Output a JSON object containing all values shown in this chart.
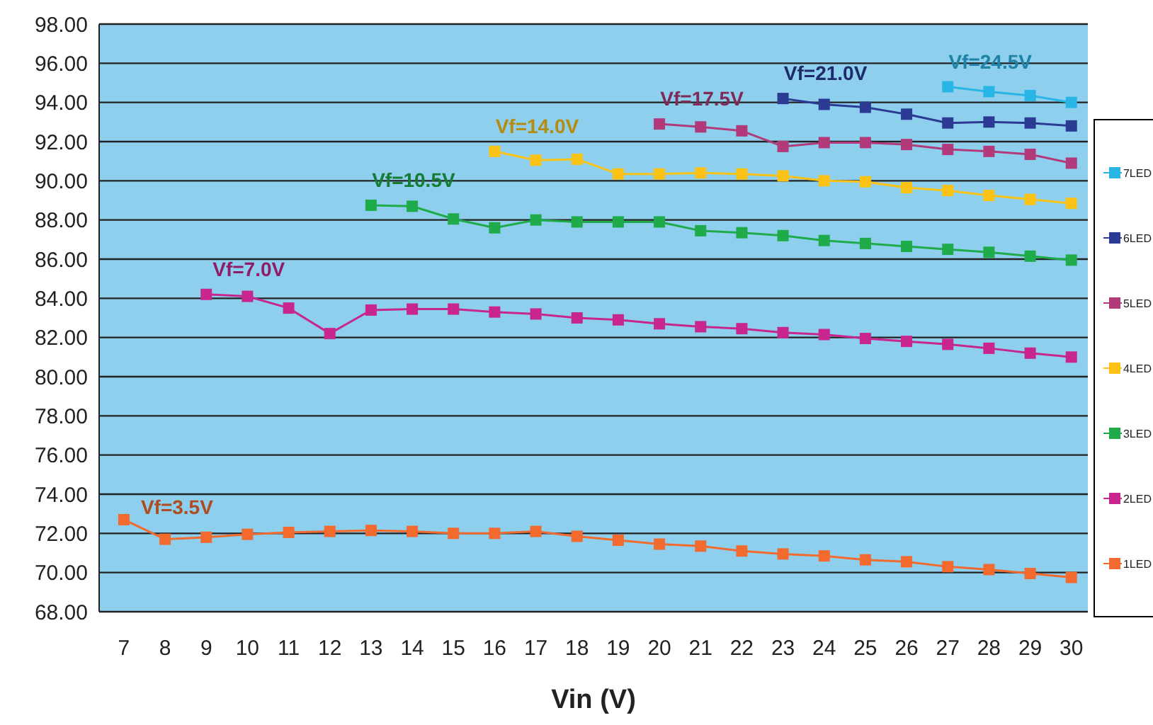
{
  "chart_data": {
    "type": "line",
    "xlabel": "Vin (V)",
    "xlim": [
      6.4,
      30.4
    ],
    "xticks": [
      7,
      8,
      9,
      10,
      11,
      12,
      13,
      14,
      15,
      16,
      17,
      18,
      19,
      20,
      21,
      22,
      23,
      24,
      25,
      26,
      27,
      28,
      29,
      30
    ],
    "ylim": [
      68,
      98
    ],
    "yticks": [
      {
        "value": 68,
        "label": "68.00"
      },
      {
        "value": 70,
        "label": "70.00"
      },
      {
        "value": 72,
        "label": "72.00"
      },
      {
        "value": 74,
        "label": "74.00"
      },
      {
        "value": 76,
        "label": "76.00"
      },
      {
        "value": 78,
        "label": "78.00"
      },
      {
        "value": 80,
        "label": "80.00"
      },
      {
        "value": 82,
        "label": "82.00"
      },
      {
        "value": 84,
        "label": "84.00"
      },
      {
        "value": 86,
        "label": "86.00"
      },
      {
        "value": 88,
        "label": "88.00"
      },
      {
        "value": 90,
        "label": "90.00"
      },
      {
        "value": 92,
        "label": "92.00"
      },
      {
        "value": 94,
        "label": "94.00"
      },
      {
        "value": 96,
        "label": "96.00"
      },
      {
        "value": 98,
        "label": "98.00"
      }
    ],
    "grid": "y",
    "legend": "right",
    "marker": "square",
    "line_style": "solid",
    "series": [
      {
        "name": "1LED",
        "color": "#f26a2e",
        "x": [
          7,
          8,
          9,
          10,
          11,
          12,
          13,
          14,
          15,
          16,
          17,
          18,
          19,
          20,
          21,
          22,
          23,
          24,
          25,
          26,
          27,
          28,
          29,
          30
        ],
        "values": [
          72.7,
          71.7,
          71.8,
          71.95,
          72.05,
          72.1,
          72.15,
          72.1,
          72.0,
          72.0,
          72.1,
          71.85,
          71.65,
          71.45,
          71.35,
          71.1,
          70.95,
          70.85,
          70.65,
          70.55,
          70.3,
          70.15,
          69.95,
          69.75
        ]
      },
      {
        "name": "2LED",
        "color": "#c8258e",
        "x": [
          9,
          10,
          11,
          12,
          13,
          14,
          15,
          16,
          17,
          18,
          19,
          20,
          21,
          22,
          23,
          24,
          25,
          26,
          27,
          28,
          29,
          30
        ],
        "values": [
          84.2,
          84.1,
          83.5,
          82.2,
          83.4,
          83.45,
          83.45,
          83.3,
          83.2,
          83.0,
          82.9,
          82.7,
          82.55,
          82.45,
          82.25,
          82.15,
          81.95,
          81.8,
          81.65,
          81.45,
          81.2,
          81.0
        ]
      },
      {
        "name": "3LED",
        "color": "#1fab4a",
        "x": [
          13,
          14,
          15,
          16,
          17,
          18,
          19,
          20,
          21,
          22,
          23,
          24,
          25,
          26,
          27,
          28,
          29,
          30
        ],
        "values": [
          88.75,
          88.7,
          88.05,
          87.6,
          88.0,
          87.9,
          87.9,
          87.9,
          87.45,
          87.35,
          87.2,
          86.95,
          86.8,
          86.65,
          86.5,
          86.35,
          86.15,
          85.95
        ]
      },
      {
        "name": "4LED",
        "color": "#fbc216",
        "x": [
          16,
          17,
          18,
          19,
          20,
          21,
          22,
          23,
          24,
          25,
          26,
          27,
          28,
          29,
          30
        ],
        "values": [
          91.5,
          91.05,
          91.1,
          90.35,
          90.35,
          90.4,
          90.35,
          90.25,
          90.0,
          89.95,
          89.65,
          89.5,
          89.25,
          89.05,
          88.85
        ]
      },
      {
        "name": "5LED",
        "color": "#b23a7a",
        "x": [
          20,
          21,
          22,
          23,
          24,
          25,
          26,
          27,
          28,
          29,
          30
        ],
        "values": [
          92.9,
          92.75,
          92.55,
          91.75,
          91.95,
          91.95,
          91.85,
          91.6,
          91.5,
          91.35,
          90.9
        ]
      },
      {
        "name": "6LED",
        "color": "#2b3a93",
        "x": [
          23,
          24,
          25,
          26,
          27,
          28,
          29,
          30
        ],
        "values": [
          94.2,
          93.9,
          93.75,
          93.4,
          92.95,
          93.0,
          92.95,
          92.8
        ]
      },
      {
        "name": "7LED",
        "color": "#29b6e6",
        "x": [
          27,
          28,
          29,
          30
        ],
        "values": [
          94.8,
          94.55,
          94.35,
          94.0
        ]
      }
    ],
    "annotations": [
      "Vf=3.5V",
      "Vf=7.0V",
      "Vf=10.5V",
      "Vf=14.0V",
      "Vf=17.5V",
      "Vf=21.0V",
      "Vf=24.5V"
    ]
  }
}
